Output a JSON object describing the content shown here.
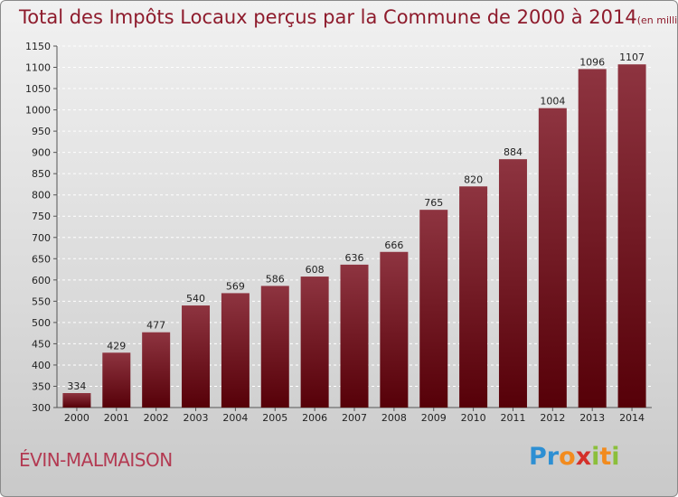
{
  "chart_data": {
    "type": "bar",
    "title": "Total des Impôts Locaux perçus par la Commune de 2000 à 2014",
    "subtitle": "(en milliers d'€)",
    "categories": [
      "2000",
      "2001",
      "2002",
      "2003",
      "2004",
      "2005",
      "2006",
      "2007",
      "2008",
      "2009",
      "2010",
      "2011",
      "2012",
      "2013",
      "2014"
    ],
    "values": [
      334,
      429,
      477,
      540,
      569,
      586,
      608,
      636,
      666,
      765,
      820,
      884,
      1004,
      1096,
      1107
    ],
    "ylim": [
      300,
      1150
    ],
    "yticks": [
      300,
      350,
      400,
      450,
      500,
      550,
      600,
      650,
      700,
      750,
      800,
      850,
      900,
      950,
      1000,
      1050,
      1100,
      1150
    ],
    "xlabel": "",
    "ylabel": "",
    "grid": true,
    "bar_color": "#6e0f1c"
  },
  "commune": "ÉVIN-MALMAISON",
  "logo": {
    "letters": [
      "P",
      "r",
      "o",
      "x",
      "i",
      "t",
      "i"
    ],
    "colors": [
      "#2d8fd3",
      "#2d8fd3",
      "#f28b1e",
      "#d4302a",
      "#8bbf3b",
      "#f28b1e",
      "#8bbf3b"
    ]
  }
}
